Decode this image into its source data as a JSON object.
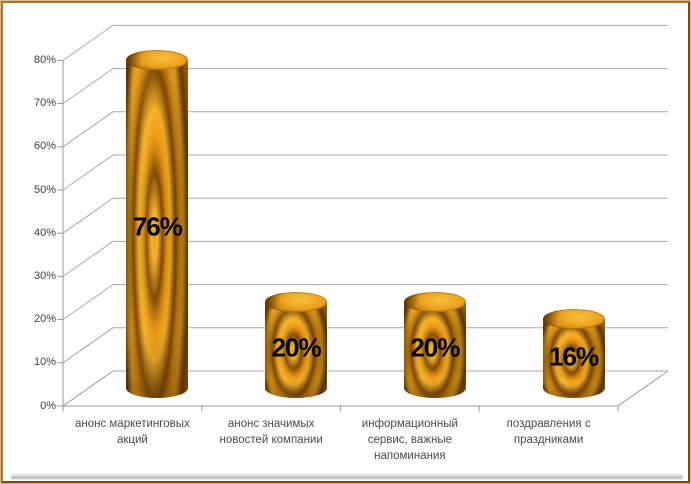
{
  "chart_data": {
    "type": "bar",
    "subtype": "cylinder-3d",
    "title": "",
    "xlabel": "",
    "ylabel": "",
    "legend": "none",
    "grid": true,
    "categories": [
      "анонс маркетинговых акций",
      "анонс значимых новостей компании",
      "информационный сервис, важные напоминания",
      "поздравления с праздниками"
    ],
    "category_lines": [
      [
        "анонс маркетинговых",
        "акций"
      ],
      [
        "анонс значимых",
        "новостей компании"
      ],
      [
        "информационный",
        "сервис, важные",
        "напоминания"
      ],
      [
        "поздравления с",
        "праздниками"
      ]
    ],
    "values": [
      76,
      20,
      20,
      16
    ],
    "data_labels": [
      "76%",
      "20%",
      "20%",
      "16%"
    ],
    "yticks": [
      "0%",
      "10%",
      "20%",
      "30%",
      "40%",
      "50%",
      "60%",
      "70%",
      "80%"
    ],
    "ylim": [
      0,
      80
    ],
    "colors": {
      "bar_light": "#f7b129",
      "bar_mid": "#ec9e16",
      "bar_ring_dark": "#7e4a04",
      "bar_ring_mid": "#cd830e",
      "gridline": "#a8a8a8",
      "axis_line": "#9a9a9a",
      "tick_text": "#3f3f3f",
      "category_text": "#4b4b4b",
      "data_label": "#000000",
      "frame_border": "#b5722e",
      "background": "#ffffff"
    }
  }
}
